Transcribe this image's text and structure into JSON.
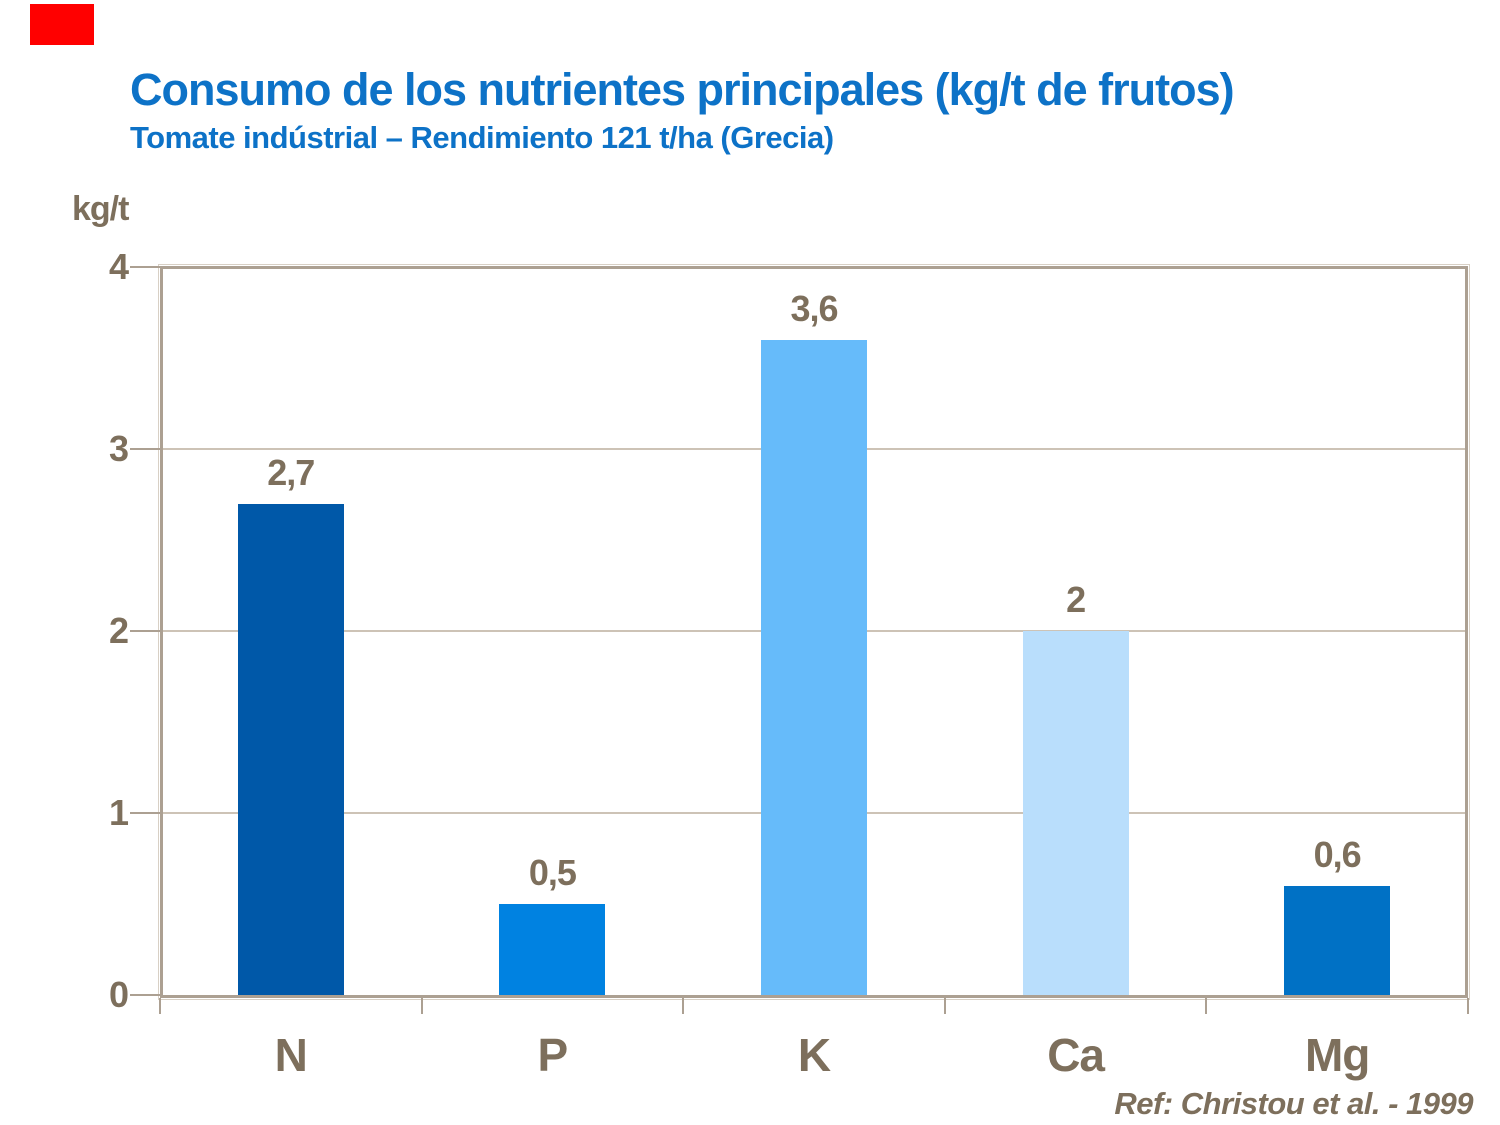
{
  "slide": {
    "title": "Consumo de los nutrientes principales (kg/t de frutos)",
    "subtitle": "Tomate indústrial – Rendimiento 121 t/ha (Grecia)",
    "reference": "Ref: Christou et al. - 1999"
  },
  "colors": {
    "title_blue": "#0d72c7",
    "axis_text_taupe": "#7d6f5c",
    "plot_border": "#aca092",
    "plot_border_outer": "#d8d0c5",
    "gridline": "#cdc3b6",
    "corner_marker_red": "#ff0000",
    "background": "#ffffff"
  },
  "chart_data": {
    "type": "bar",
    "title": "Consumo de los nutrientes principales (kg/t de frutos)",
    "subtitle": "Tomate indústrial – Rendimiento 121 t/ha (Grecia)",
    "categories": [
      "N",
      "P",
      "K",
      "Ca",
      "Mg"
    ],
    "values": [
      2.7,
      0.5,
      3.6,
      2,
      0.6
    ],
    "value_labels": [
      "2,7",
      "0,5",
      "3,6",
      "2",
      "0,6"
    ],
    "bar_colors": [
      "#0058a8",
      "#0082e1",
      "#66bbfa",
      "#b9defc",
      "#0071c5"
    ],
    "ylabel": "kg/t",
    "xlabel": "",
    "ylim": [
      0,
      4
    ],
    "yticks": [
      0,
      1,
      2,
      3,
      4
    ],
    "grid": "horizontal",
    "legend": "none",
    "reference": "Ref: Christou et al. - 1999"
  }
}
